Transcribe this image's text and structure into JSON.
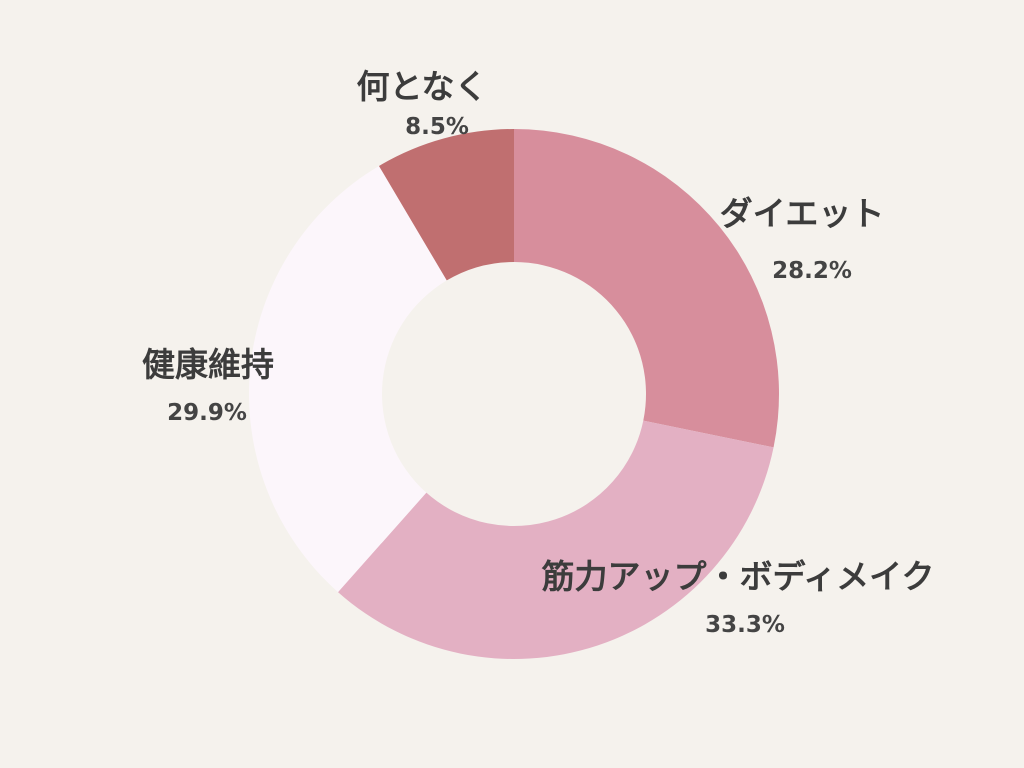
{
  "chart_data": {
    "type": "pie",
    "donut": true,
    "categories": [
      "ダイエット",
      "筋力アップ・ボディメイク",
      "健康維持",
      "何となく"
    ],
    "values": [
      28.2,
      33.3,
      29.9,
      8.5
    ],
    "value_labels": [
      "28.2%",
      "33.3%",
      "29.9%",
      "8.5%"
    ],
    "colors": [
      "#d78e9c",
      "#e3b0c3",
      "#fcf6fb",
      "#c06f70"
    ],
    "start_angle": "12 o'clock",
    "direction": "clockwise",
    "title": ""
  }
}
